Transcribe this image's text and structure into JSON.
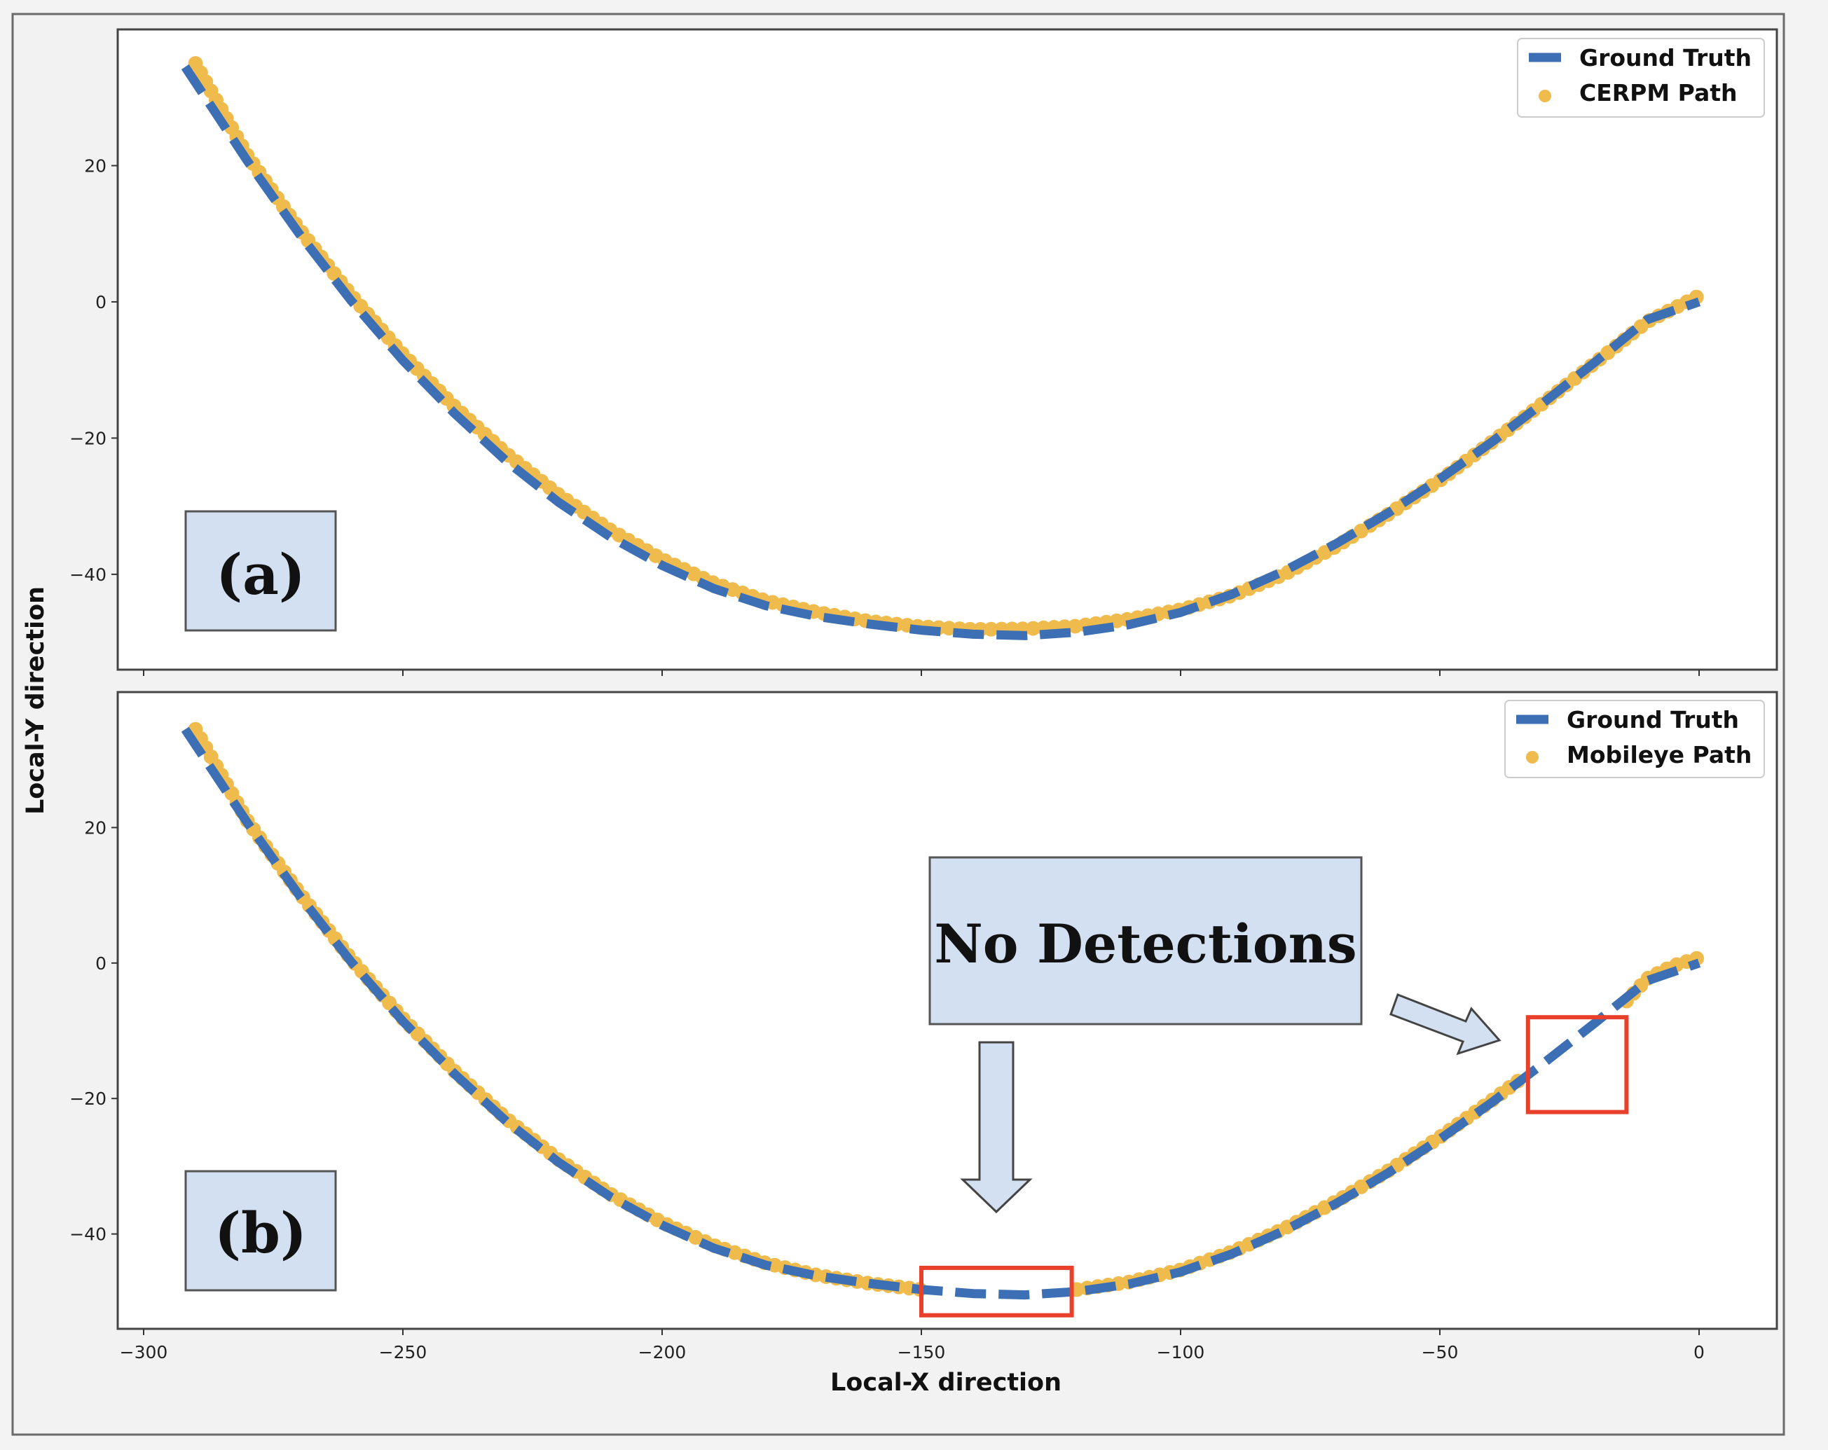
{
  "figure": {
    "xlabel": "Local-X direction",
    "ylabel": "Local-Y direction",
    "annotation": "No Detections"
  },
  "colors": {
    "ground_truth": "#3d6fb4",
    "estimated_path": "#f0bb4d",
    "highlight_box": "#e8402a",
    "callout_fill": "#d3e0f2",
    "axes_frame": "#444444"
  },
  "chart_data": [
    {
      "type": "line",
      "panel_label": "(a)",
      "xlim": [
        -305,
        15
      ],
      "ylim": [
        -54,
        40
      ],
      "xticks": [
        -300,
        -250,
        -200,
        -150,
        -100,
        -50,
        0
      ],
      "yticks": [
        20,
        0,
        -20,
        -40
      ],
      "xlabel": "",
      "ylabel": "Local-Y direction",
      "legend_position": "top-right",
      "grid": false,
      "series": [
        {
          "name": "Ground Truth",
          "style": "dashed-line",
          "x": [
            -292,
            -280,
            -270,
            -260,
            -250,
            -240,
            -230,
            -220,
            -210,
            -200,
            -190,
            -180,
            -170,
            -160,
            -150,
            -140,
            -130,
            -120,
            -110,
            -100,
            -90,
            -80,
            -70,
            -60,
            -50,
            -40,
            -30,
            -20,
            -10,
            0
          ],
          "y": [
            34.5,
            20.7,
            10.0,
            0.2,
            -8.6,
            -16.4,
            -23.4,
            -29.4,
            -34.5,
            -38.7,
            -42.1,
            -44.6,
            -46.2,
            -47.3,
            -48.2,
            -48.8,
            -49.0,
            -48.5,
            -47.4,
            -45.6,
            -42.9,
            -39.5,
            -35.5,
            -31.0,
            -26.0,
            -20.6,
            -14.8,
            -8.8,
            -2.6,
            0.0
          ]
        },
        {
          "name": "CERPM Path",
          "style": "points",
          "x": [
            -290,
            -280,
            -270,
            -260,
            -250,
            -240,
            -230,
            -220,
            -210,
            -200,
            -190,
            -180,
            -170,
            -160,
            -150,
            -140,
            -130,
            -120,
            -110,
            -100,
            -90,
            -80,
            -70,
            -60,
            -50,
            -40,
            -30,
            -20,
            -10,
            0
          ],
          "y": [
            35.0,
            21.5,
            10.7,
            1.0,
            -7.7,
            -15.4,
            -22.3,
            -28.3,
            -33.5,
            -37.8,
            -41.3,
            -43.9,
            -45.6,
            -46.9,
            -47.7,
            -48.1,
            -48.0,
            -47.6,
            -46.6,
            -45.2,
            -43.1,
            -40.0,
            -35.9,
            -31.2,
            -26.2,
            -20.6,
            -14.8,
            -8.9,
            -2.9,
            0.9
          ]
        }
      ]
    },
    {
      "type": "line",
      "panel_label": "(b)",
      "xlim": [
        -305,
        15
      ],
      "ylim": [
        -54,
        40
      ],
      "xticks": [
        -300,
        -250,
        -200,
        -150,
        -100,
        -50,
        0
      ],
      "yticks": [
        20,
        0,
        -20,
        -40
      ],
      "xlabel": "Local-X direction",
      "ylabel": "",
      "legend_position": "top-right",
      "grid": false,
      "series": [
        {
          "name": "Ground Truth",
          "style": "dashed-line",
          "x": [
            -292,
            -280,
            -270,
            -260,
            -250,
            -240,
            -230,
            -220,
            -210,
            -200,
            -190,
            -180,
            -170,
            -160,
            -150,
            -140,
            -130,
            -120,
            -110,
            -100,
            -90,
            -80,
            -70,
            -60,
            -50,
            -40,
            -30,
            -20,
            -10,
            0
          ],
          "y": [
            34.5,
            20.7,
            10.0,
            0.2,
            -8.6,
            -16.4,
            -23.4,
            -29.4,
            -34.5,
            -38.7,
            -42.1,
            -44.6,
            -46.2,
            -47.3,
            -48.2,
            -48.8,
            -49.0,
            -48.5,
            -47.4,
            -45.6,
            -42.9,
            -39.5,
            -35.5,
            -31.0,
            -26.0,
            -20.6,
            -14.8,
            -8.8,
            -2.6,
            0.0
          ]
        },
        {
          "name": "Mobileye Path",
          "style": "points",
          "segments": [
            {
              "x": [
                -290,
                -280,
                -270,
                -260,
                -250,
                -240,
                -230,
                -220,
                -210,
                -200,
                -190,
                -180,
                -170,
                -160,
                -150
              ],
              "y": [
                34.5,
                21.0,
                10.4,
                0.6,
                -8.2,
                -16.0,
                -23.0,
                -29.0,
                -34.1,
                -38.3,
                -41.7,
                -44.3,
                -46.1,
                -47.3,
                -48.2
              ]
            },
            {
              "x": [
                -120,
                -110,
                -100,
                -90,
                -80,
                -70,
                -60,
                -50,
                -40,
                -34
              ],
              "y": [
                -48.2,
                -47.1,
                -45.3,
                -42.6,
                -39.2,
                -35.2,
                -30.7,
                -25.7,
                -20.3,
                -16.9
              ]
            },
            {
              "x": [
                -14,
                -10,
                -5,
                0
              ],
              "y": [
                -5.6,
                -2.3,
                -0.4,
                0.8
              ]
            }
          ]
        }
      ],
      "no_detection_regions": [
        {
          "x": [
            -150,
            -121
          ],
          "y": [
            -52,
            -45
          ]
        },
        {
          "x": [
            -33,
            -14
          ],
          "y": [
            -22,
            -8
          ]
        }
      ]
    }
  ]
}
